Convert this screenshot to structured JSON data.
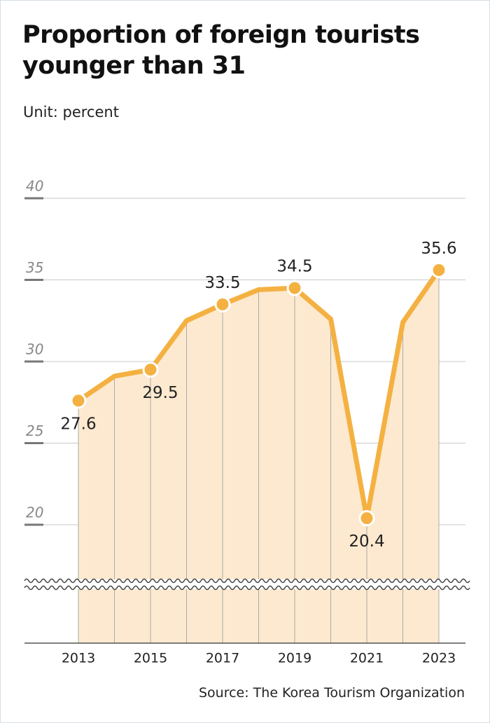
{
  "chart_data": {
    "type": "line",
    "title": "Proportion of foreign tourists younger than 31",
    "subtitle": "Unit: percent",
    "source": "Source: The Korea Tourism Organization",
    "categories": [
      "2013",
      null,
      "2015",
      null,
      "2017",
      null,
      "2019",
      null,
      "2021",
      null,
      "2023"
    ],
    "values": [
      27.6,
      29.1,
      29.5,
      32.5,
      33.5,
      34.4,
      34.5,
      32.6,
      20.4,
      32.4,
      35.6
    ],
    "value_labels": [
      "27.6",
      null,
      "29.5",
      null,
      "33.5",
      null,
      "34.5",
      null,
      "20.4",
      null,
      "35.6"
    ],
    "color": "#f4b142",
    "area_color": "#fde9cf",
    "ylim": [
      20,
      40
    ],
    "yticks": [
      20,
      25,
      30,
      35,
      40
    ],
    "grid": true
  }
}
